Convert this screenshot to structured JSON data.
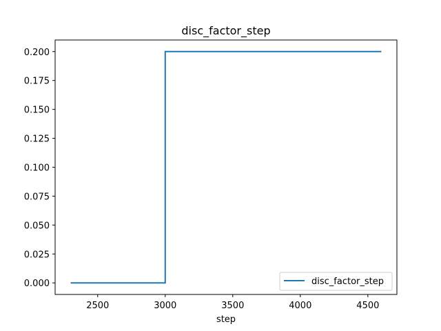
{
  "chart_data": {
    "type": "line",
    "title": "disc_factor_step",
    "xlabel": "step",
    "ylabel": "",
    "xlim": [
      2185,
      4715
    ],
    "ylim": [
      -0.01,
      0.21
    ],
    "xticks": [
      2500,
      3000,
      3500,
      4000,
      4500
    ],
    "xtick_labels": [
      "2500",
      "3000",
      "3500",
      "4000",
      "4500"
    ],
    "yticks": [
      0.0,
      0.025,
      0.05,
      0.075,
      0.1,
      0.125,
      0.15,
      0.175,
      0.2
    ],
    "ytick_labels": [
      "0.000",
      "0.025",
      "0.050",
      "0.075",
      "0.100",
      "0.125",
      "0.150",
      "0.175",
      "0.200"
    ],
    "grid": false,
    "legend_position": "lower right",
    "series": [
      {
        "name": "disc_factor_step",
        "color": "#1f77b4",
        "x": [
          2300,
          3000,
          3000,
          4600
        ],
        "y": [
          0.0,
          0.0,
          0.2,
          0.2
        ]
      }
    ]
  }
}
